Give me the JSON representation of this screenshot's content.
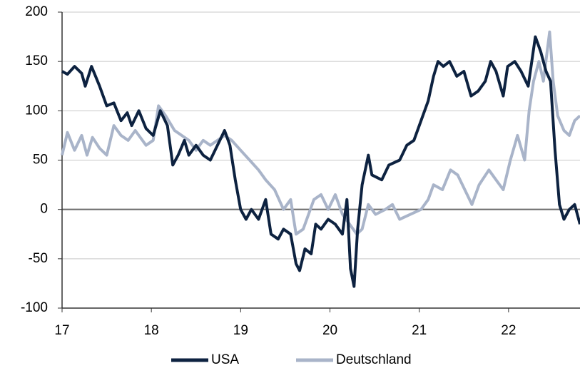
{
  "chart_data": {
    "type": "line",
    "xlim": [
      17,
      22.8
    ],
    "xticks": [
      17,
      18,
      19,
      20,
      21,
      22
    ],
    "ylim": [
      -100,
      200
    ],
    "yticks": [
      -100,
      -50,
      0,
      50,
      100,
      150,
      200
    ],
    "grid": true,
    "legend": "bottom",
    "series": [
      {
        "name": "USA",
        "color": "#0d2240",
        "x": [
          17.0,
          17.06,
          17.14,
          17.22,
          17.26,
          17.33,
          17.42,
          17.5,
          17.58,
          17.66,
          17.73,
          17.78,
          17.86,
          17.94,
          18.02,
          18.1,
          18.18,
          18.24,
          18.3,
          18.37,
          18.42,
          18.5,
          18.58,
          18.66,
          18.74,
          18.82,
          18.88,
          18.94,
          19.0,
          19.06,
          19.12,
          19.2,
          19.28,
          19.34,
          19.42,
          19.48,
          19.56,
          19.62,
          19.66,
          19.72,
          19.79,
          19.84,
          19.9,
          19.98,
          20.06,
          20.14,
          20.19,
          20.23,
          20.27,
          20.31,
          20.36,
          20.43,
          20.47,
          20.58,
          20.66,
          20.78,
          20.86,
          20.94,
          21.02,
          21.1,
          21.16,
          21.21,
          21.27,
          21.34,
          21.42,
          21.5,
          21.58,
          21.66,
          21.74,
          21.8,
          21.86,
          21.94,
          21.99,
          22.07,
          22.14,
          22.22,
          22.3,
          22.36,
          22.42,
          22.47,
          22.52,
          22.57,
          22.62,
          22.68,
          22.74,
          22.8
        ],
        "values": [
          140,
          137,
          145,
          138,
          125,
          145,
          125,
          105,
          108,
          90,
          98,
          85,
          100,
          82,
          75,
          100,
          85,
          45,
          55,
          70,
          55,
          65,
          55,
          50,
          65,
          80,
          65,
          30,
          0,
          -10,
          0,
          -10,
          10,
          -25,
          -30,
          -20,
          -25,
          -55,
          -62,
          -40,
          -45,
          -15,
          -20,
          -10,
          -15,
          -25,
          10,
          -60,
          -78,
          -20,
          25,
          55,
          35,
          30,
          45,
          50,
          65,
          70,
          90,
          110,
          135,
          150,
          145,
          150,
          135,
          140,
          115,
          120,
          130,
          150,
          140,
          115,
          145,
          150,
          140,
          125,
          175,
          160,
          140,
          130,
          60,
          5,
          -10,
          0,
          5,
          -15
        ]
      },
      {
        "name": "Deutschland",
        "color": "#a9b4c9",
        "x": [
          17.0,
          17.06,
          17.14,
          17.22,
          17.28,
          17.34,
          17.42,
          17.5,
          17.58,
          17.66,
          17.74,
          17.82,
          17.94,
          18.02,
          18.08,
          18.16,
          18.26,
          18.34,
          18.42,
          18.5,
          18.58,
          18.66,
          18.74,
          18.82,
          18.9,
          19.0,
          19.1,
          19.2,
          19.28,
          19.38,
          19.48,
          19.56,
          19.62,
          19.7,
          19.76,
          19.82,
          19.9,
          19.98,
          20.06,
          20.14,
          20.22,
          20.3,
          20.36,
          20.43,
          20.51,
          20.62,
          20.7,
          20.78,
          20.9,
          21.02,
          21.1,
          21.16,
          21.26,
          21.35,
          21.43,
          21.51,
          21.59,
          21.67,
          21.78,
          21.86,
          21.94,
          22.02,
          22.1,
          22.18,
          22.23,
          22.28,
          22.34,
          22.39,
          22.46,
          22.5,
          22.55,
          22.62,
          22.68,
          22.74,
          22.8
        ],
        "values": [
          55,
          78,
          60,
          75,
          55,
          73,
          62,
          55,
          85,
          75,
          70,
          80,
          65,
          70,
          105,
          95,
          80,
          75,
          70,
          60,
          70,
          65,
          70,
          75,
          70,
          60,
          50,
          40,
          30,
          20,
          0,
          10,
          -25,
          -20,
          -5,
          10,
          15,
          0,
          15,
          -5,
          -15,
          -25,
          -20,
          5,
          -5,
          0,
          5,
          -10,
          -5,
          0,
          10,
          25,
          20,
          40,
          35,
          20,
          5,
          25,
          40,
          30,
          20,
          50,
          75,
          50,
          100,
          130,
          150,
          130,
          180,
          130,
          95,
          80,
          75,
          90,
          95
        ]
      }
    ]
  }
}
